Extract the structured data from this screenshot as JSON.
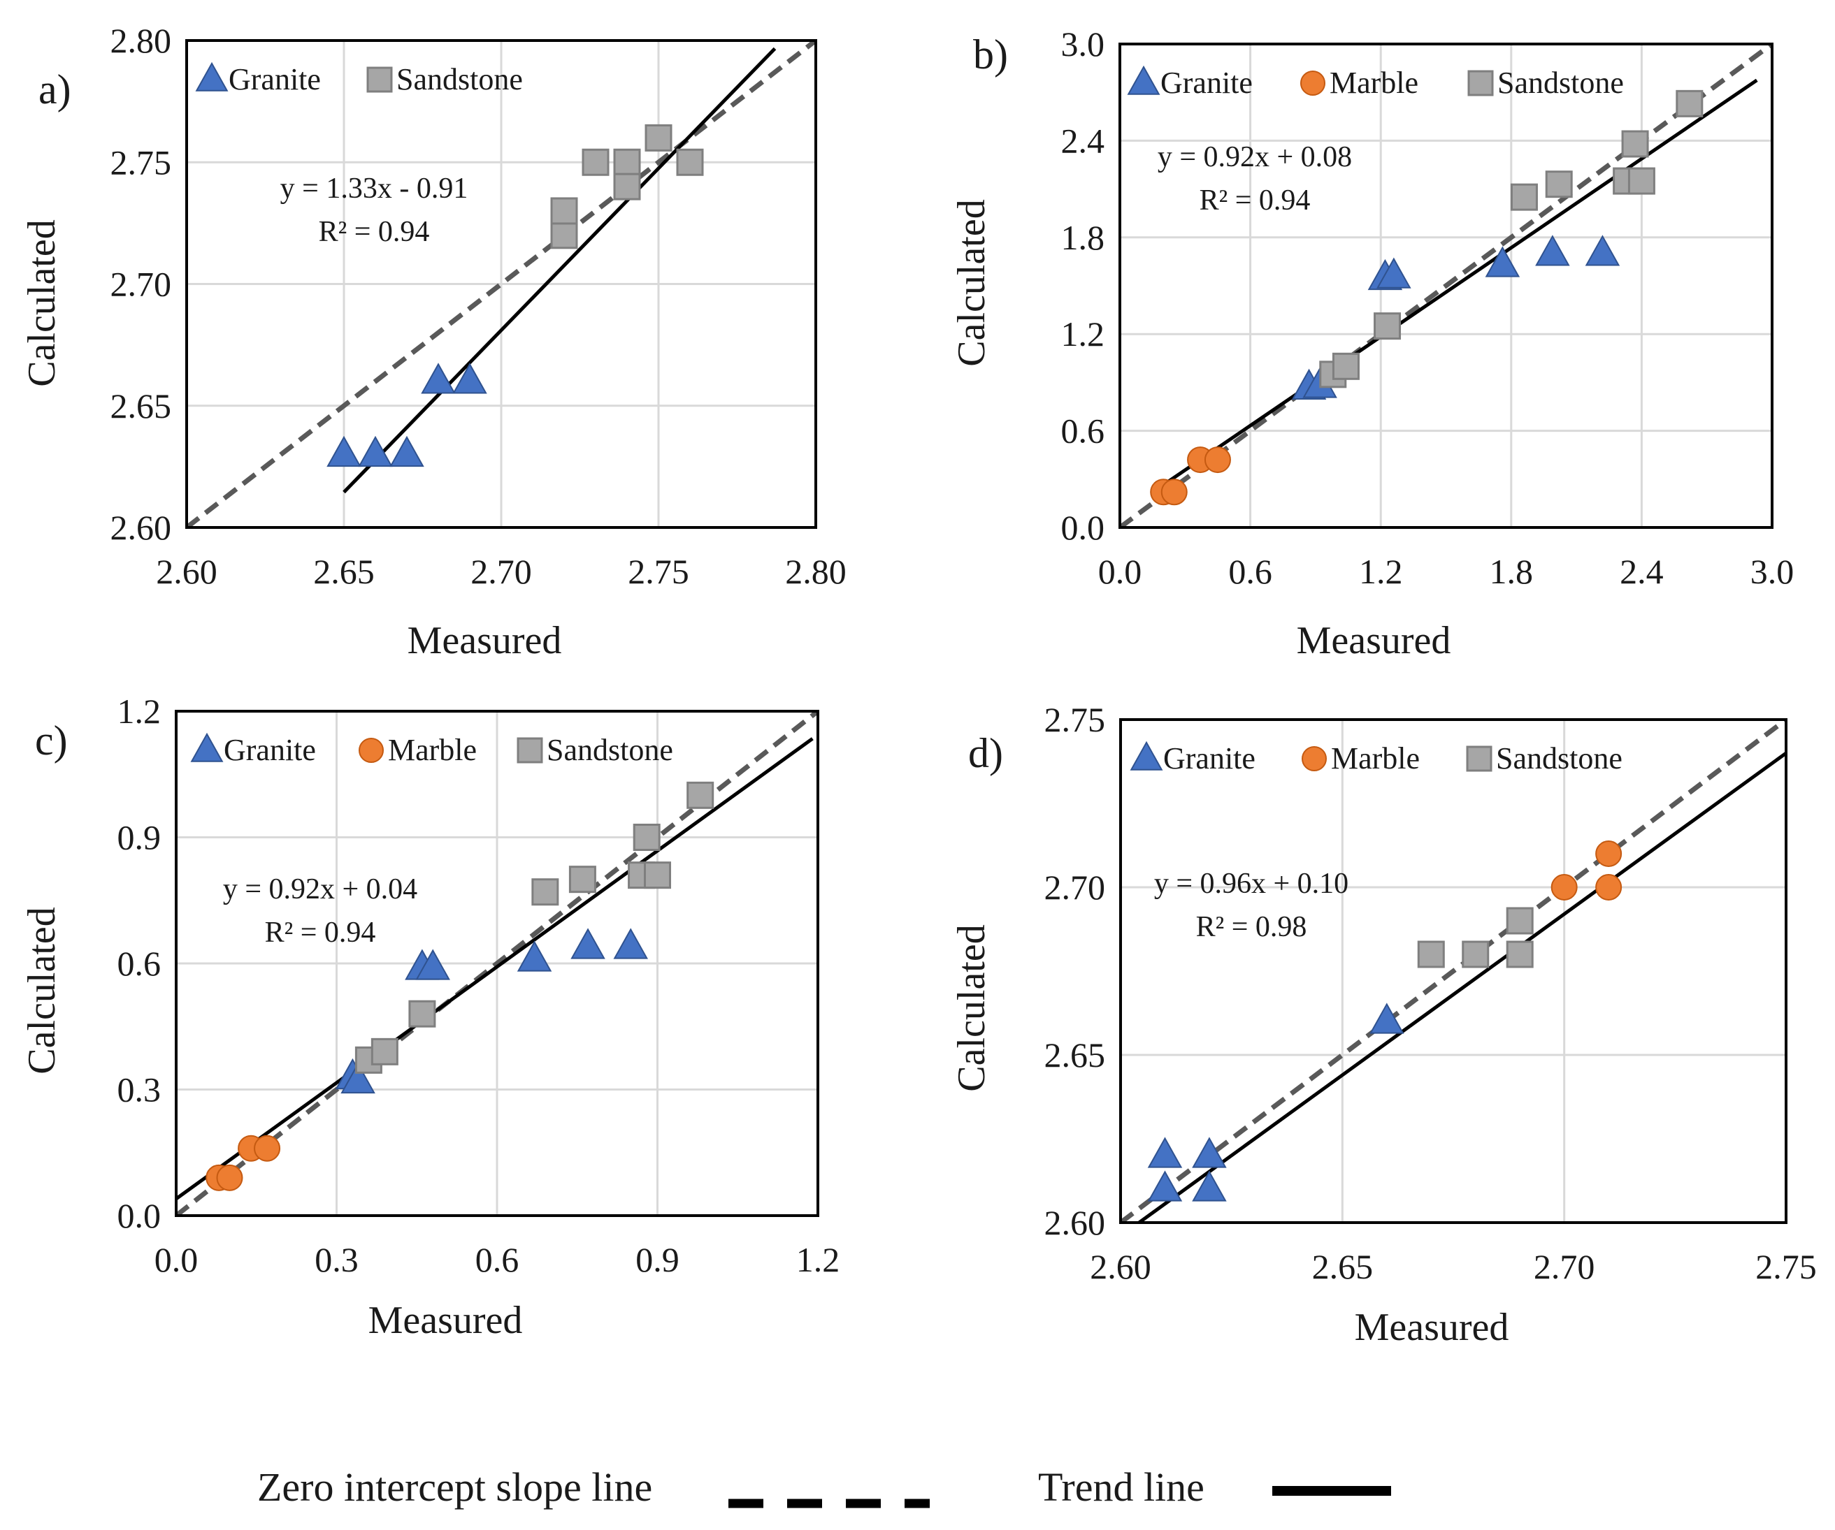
{
  "figure": {
    "bottom_legend": {
      "zero_line_label": "Zero intercept slope line",
      "trend_line_label": "Trend line"
    }
  },
  "chart_data": [
    {
      "type": "scatter",
      "panel_label": "a)",
      "xlabel": "Measured",
      "ylabel": "Calculated",
      "xlim": [
        2.6,
        2.8
      ],
      "ylim": [
        2.6,
        2.8
      ],
      "xticks": [
        "2.60",
        "2.65",
        "2.70",
        "2.75",
        "2.80"
      ],
      "yticks": [
        "2.60",
        "2.65",
        "2.70",
        "2.75",
        "2.80"
      ],
      "grid": true,
      "equation": "y = 1.33x - 0.91",
      "r2": "R² = 0.94",
      "trend": {
        "slope": 1.33,
        "intercept": -0.91,
        "x_range": [
          2.65,
          2.787
        ]
      },
      "legend": [
        "Granite",
        "Sandstone"
      ],
      "series": [
        {
          "name": "Granite",
          "marker": "triangle",
          "color": "#4472c4",
          "points": [
            [
              2.65,
              2.63
            ],
            [
              2.66,
              2.63
            ],
            [
              2.67,
              2.63
            ],
            [
              2.68,
              2.66
            ],
            [
              2.69,
              2.66
            ]
          ]
        },
        {
          "name": "Sandstone",
          "marker": "square",
          "color": "#a6a6a6",
          "points": [
            [
              2.72,
              2.72
            ],
            [
              2.72,
              2.73
            ],
            [
              2.73,
              2.75
            ],
            [
              2.74,
              2.75
            ],
            [
              2.74,
              2.74
            ],
            [
              2.75,
              2.76
            ],
            [
              2.76,
              2.75
            ]
          ]
        }
      ]
    },
    {
      "type": "scatter",
      "panel_label": "b)",
      "xlabel": "Measured",
      "ylabel": "Calculated",
      "xlim": [
        0.0,
        3.0
      ],
      "ylim": [
        0.0,
        3.0
      ],
      "xticks": [
        "0.0",
        "0.6",
        "1.2",
        "1.8",
        "2.4",
        "3.0"
      ],
      "yticks": [
        "0.0",
        "0.6",
        "1.2",
        "1.8",
        "2.4",
        "3.0"
      ],
      "grid": true,
      "equation": "y = 0.92x + 0.08",
      "r2": "R² = 0.94",
      "trend": {
        "slope": 0.92,
        "intercept": 0.08,
        "x_range": [
          0.2,
          2.93
        ]
      },
      "legend": [
        "Granite",
        "Marble",
        "Sandstone"
      ],
      "series": [
        {
          "name": "Granite",
          "marker": "triangle",
          "color": "#4472c4",
          "points": [
            [
              0.87,
              0.87
            ],
            [
              0.92,
              0.88
            ],
            [
              1.22,
              1.55
            ],
            [
              1.26,
              1.56
            ],
            [
              1.76,
              1.63
            ],
            [
              1.99,
              1.7
            ],
            [
              2.22,
              1.7
            ]
          ]
        },
        {
          "name": "Marble",
          "marker": "circle",
          "color": "#ed7d31",
          "points": [
            [
              0.2,
              0.22
            ],
            [
              0.25,
              0.22
            ],
            [
              0.37,
              0.42
            ],
            [
              0.45,
              0.42
            ]
          ]
        },
        {
          "name": "Sandstone",
          "marker": "square",
          "color": "#a6a6a6",
          "points": [
            [
              0.98,
              0.95
            ],
            [
              1.04,
              1.0
            ],
            [
              1.23,
              1.25
            ],
            [
              1.86,
              2.05
            ],
            [
              2.02,
              2.13
            ],
            [
              2.33,
              2.15
            ],
            [
              2.37,
              2.38
            ],
            [
              2.4,
              2.15
            ],
            [
              2.62,
              2.63
            ]
          ]
        }
      ]
    },
    {
      "type": "scatter",
      "panel_label": "c)",
      "xlabel": "Measured",
      "ylabel": "Calculated",
      "xlim": [
        0.0,
        1.2
      ],
      "ylim": [
        0.0,
        1.2
      ],
      "xticks": [
        "0.0",
        "0.3",
        "0.6",
        "0.9",
        "1.2"
      ],
      "yticks": [
        "0.0",
        "0.3",
        "0.6",
        "0.9",
        "1.2"
      ],
      "grid": true,
      "equation": "y = 0.92x + 0.04",
      "r2": "R² = 0.94",
      "trend": {
        "slope": 0.92,
        "intercept": 0.04,
        "x_range": [
          0.0,
          1.19
        ]
      },
      "legend": [
        "Granite",
        "Marble",
        "Sandstone"
      ],
      "series": [
        {
          "name": "Granite",
          "marker": "triangle",
          "color": "#4472c4",
          "points": [
            [
              0.33,
              0.33
            ],
            [
              0.34,
              0.32
            ],
            [
              0.46,
              0.59
            ],
            [
              0.48,
              0.59
            ],
            [
              0.67,
              0.61
            ],
            [
              0.77,
              0.64
            ],
            [
              0.85,
              0.64
            ]
          ]
        },
        {
          "name": "Marble",
          "marker": "circle",
          "color": "#ed7d31",
          "points": [
            [
              0.08,
              0.09
            ],
            [
              0.1,
              0.09
            ],
            [
              0.14,
              0.16
            ],
            [
              0.17,
              0.16
            ]
          ]
        },
        {
          "name": "Sandstone",
          "marker": "square",
          "color": "#a6a6a6",
          "points": [
            [
              0.36,
              0.37
            ],
            [
              0.39,
              0.39
            ],
            [
              0.46,
              0.48
            ],
            [
              0.69,
              0.77
            ],
            [
              0.76,
              0.8
            ],
            [
              0.87,
              0.81
            ],
            [
              0.88,
              0.9
            ],
            [
              0.9,
              0.81
            ],
            [
              0.98,
              1.0
            ]
          ]
        }
      ]
    },
    {
      "type": "scatter",
      "panel_label": "d)",
      "xlabel": "Measured",
      "ylabel": "Calculated",
      "xlim": [
        2.6,
        2.75
      ],
      "ylim": [
        2.6,
        2.75
      ],
      "xticks": [
        "2.60",
        "2.65",
        "2.70",
        "2.75"
      ],
      "yticks": [
        "2.60",
        "2.65",
        "2.70",
        "2.75"
      ],
      "grid": true,
      "equation": "y = 0.96x + 0.10",
      "r2": "R² = 0.98",
      "trend": {
        "slope": 0.96,
        "intercept": 0.1,
        "x_range": [
          2.6,
          2.75
        ]
      },
      "legend": [
        "Granite",
        "Marble",
        "Sandstone"
      ],
      "series": [
        {
          "name": "Granite",
          "marker": "triangle",
          "color": "#4472c4",
          "points": [
            [
              2.61,
              2.62
            ],
            [
              2.61,
              2.61
            ],
            [
              2.62,
              2.62
            ],
            [
              2.62,
              2.61
            ],
            [
              2.66,
              2.66
            ]
          ]
        },
        {
          "name": "Marble",
          "marker": "circle",
          "color": "#ed7d31",
          "points": [
            [
              2.7,
              2.7
            ],
            [
              2.71,
              2.71
            ],
            [
              2.71,
              2.7
            ]
          ]
        },
        {
          "name": "Sandstone",
          "marker": "square",
          "color": "#a6a6a6",
          "points": [
            [
              2.67,
              2.68
            ],
            [
              2.68,
              2.68
            ],
            [
              2.69,
              2.69
            ],
            [
              2.69,
              2.68
            ]
          ]
        }
      ]
    }
  ]
}
